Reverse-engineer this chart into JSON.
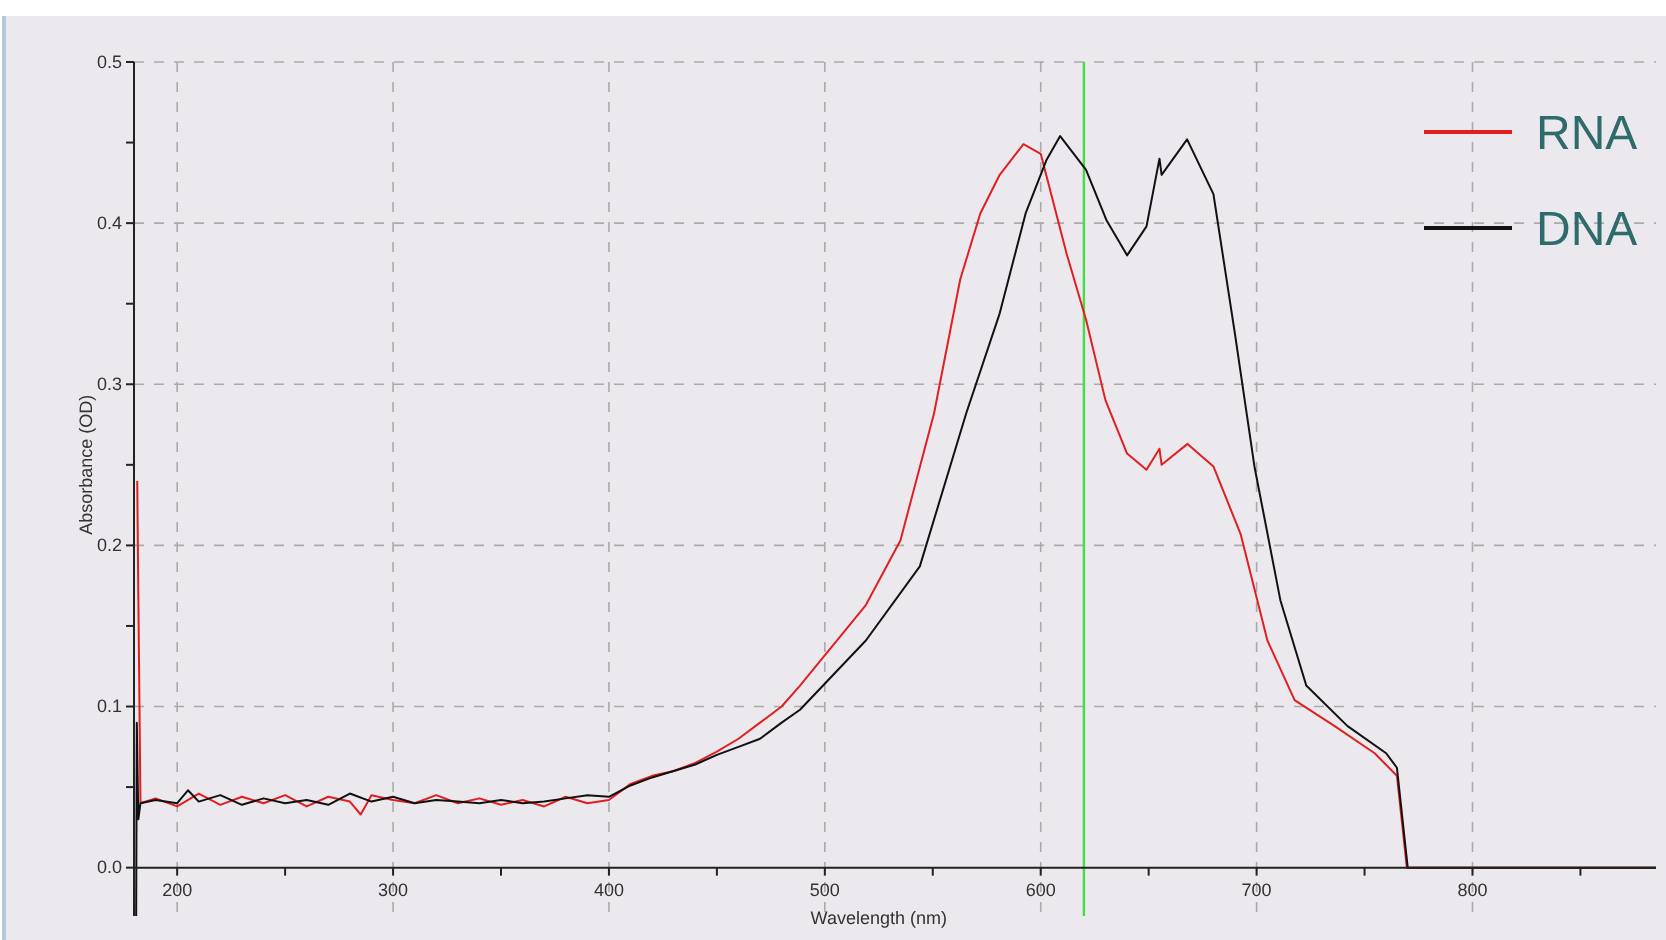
{
  "chart_data": {
    "type": "line",
    "xlabel": "Wavelength (nm)",
    "ylabel": "Absorbance (OD)",
    "xlim": [
      180,
      885
    ],
    "ylim": [
      -0.03,
      0.5
    ],
    "xticks": [
      200,
      {
        "value": 250,
        "label": null
      },
      300,
      {
        "value": 350,
        "label": null
      },
      400,
      {
        "value": 450,
        "label": null
      },
      500,
      {
        "value": 550,
        "label": null
      },
      600,
      {
        "value": 650,
        "label": null
      },
      700,
      {
        "value": 750,
        "label": null
      },
      800,
      {
        "value": 850,
        "label": null
      }
    ],
    "yticks": [
      {
        "value": 0,
        "label": "0.0"
      },
      {
        "value": 0.05,
        "label": null
      },
      0.1,
      {
        "value": 0.15,
        "label": null
      },
      0.2,
      {
        "value": 0.25,
        "label": null
      },
      0.3,
      {
        "value": 0.35,
        "label": null
      },
      0.4,
      {
        "value": 0.45,
        "label": null
      },
      0.5
    ],
    "grid": true,
    "legend": "top right",
    "line_style": "solid",
    "marker": "none",
    "ref_lines": [
      {
        "axis": "x",
        "value": 620,
        "color": "#44dd44"
      }
    ],
    "series": [
      {
        "name": "RNA",
        "color": "#e02020",
        "x": [
          181.5,
          182,
          183,
          190,
          200,
          210,
          220,
          230,
          240,
          250,
          260,
          270,
          280,
          285,
          290,
          300,
          310,
          320,
          330,
          340,
          350,
          360,
          370,
          380,
          390,
          400,
          410,
          420,
          430,
          440,
          450,
          460,
          470,
          480,
          488.5,
          519,
          535,
          550.6,
          562.7,
          572,
          581,
          592,
          600,
          612,
          621,
          630,
          640,
          649,
          655,
          656,
          668,
          680,
          692.6,
          705,
          717.6,
          736,
          754.7,
          765,
          769.6,
          800,
          885
        ],
        "values": [
          0.24,
          0.17,
          0.04,
          0.043,
          0.038,
          0.046,
          0.039,
          0.044,
          0.04,
          0.045,
          0.038,
          0.044,
          0.041,
          0.033,
          0.045,
          0.042,
          0.04,
          0.045,
          0.04,
          0.043,
          0.039,
          0.042,
          0.038,
          0.044,
          0.04,
          0.042,
          0.052,
          0.057,
          0.06,
          0.065,
          0.072,
          0.08,
          0.09,
          0.1,
          0.113,
          0.163,
          0.203,
          0.282,
          0.365,
          0.406,
          0.43,
          0.449,
          0.443,
          0.381,
          0.34,
          0.29,
          0.257,
          0.247,
          0.26,
          0.25,
          0.263,
          0.249,
          0.207,
          0.141,
          0.104,
          0.088,
          0.071,
          0.057,
          0,
          0,
          0
        ]
      },
      {
        "name": "DNA",
        "color": "#111111",
        "x": [
          181,
          181.3,
          182,
          183,
          190,
          200,
          205,
          210,
          220,
          230,
          240,
          250,
          260,
          270,
          280,
          290,
          300,
          310,
          320,
          330,
          340,
          350,
          360,
          370,
          380,
          390,
          400,
          410,
          420,
          430,
          440,
          450,
          460,
          470,
          480,
          488.5,
          519,
          544,
          565.5,
          581,
          593,
          602.6,
          609,
          621,
          630.4,
          640,
          649,
          655,
          656,
          667.8,
          680,
          690,
          699,
          711,
          723,
          742,
          760,
          765,
          770,
          800,
          885
        ],
        "values": [
          -0.03,
          0.09,
          0.03,
          0.04,
          0.042,
          0.04,
          0.048,
          0.041,
          0.045,
          0.039,
          0.043,
          0.04,
          0.042,
          0.039,
          0.046,
          0.041,
          0.044,
          0.04,
          0.042,
          0.041,
          0.04,
          0.042,
          0.04,
          0.041,
          0.043,
          0.045,
          0.044,
          0.051,
          0.056,
          0.06,
          0.064,
          0.07,
          0.075,
          0.08,
          0.09,
          0.098,
          0.141,
          0.187,
          0.282,
          0.344,
          0.406,
          0.439,
          0.454,
          0.433,
          0.402,
          0.38,
          0.398,
          0.44,
          0.43,
          0.452,
          0.418,
          0.331,
          0.249,
          0.166,
          0.113,
          0.088,
          0.071,
          0.062,
          0,
          0,
          0
        ]
      }
    ]
  }
}
